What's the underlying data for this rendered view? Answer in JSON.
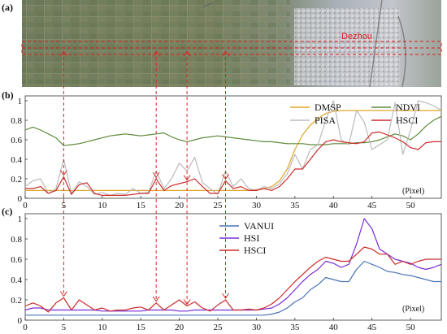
{
  "panel_a": {
    "label": "(a)",
    "place_label": "Dezhou"
  },
  "chart_data": [
    {
      "panel": "(b)",
      "type": "line",
      "xlabel": "(Pixel)",
      "ylabel": "",
      "xlim": [
        0,
        54
      ],
      "ylim": [
        0,
        1
      ],
      "xticks": [
        0,
        5,
        10,
        15,
        20,
        25,
        30,
        35,
        40,
        45,
        50
      ],
      "yticks": [
        0,
        0.2,
        0.4,
        0.6,
        0.8,
        1
      ],
      "grid": false,
      "legend_position": "top-right",
      "x": [
        0,
        1,
        2,
        3,
        4,
        5,
        6,
        7,
        8,
        9,
        10,
        11,
        12,
        13,
        14,
        15,
        16,
        17,
        18,
        19,
        20,
        21,
        22,
        23,
        24,
        25,
        26,
        27,
        28,
        29,
        30,
        31,
        32,
        33,
        34,
        35,
        36,
        37,
        38,
        39,
        40,
        41,
        42,
        43,
        44,
        45,
        46,
        47,
        48,
        49,
        50,
        51,
        52,
        53,
        54
      ],
      "series": [
        {
          "name": "DMSP",
          "color": "#e0a526",
          "values": [
            0.08,
            0.08,
            0.08,
            0.08,
            0.08,
            0.08,
            0.08,
            0.08,
            0.08,
            0.08,
            0.08,
            0.08,
            0.08,
            0.08,
            0.08,
            0.08,
            0.08,
            0.08,
            0.08,
            0.08,
            0.08,
            0.08,
            0.08,
            0.08,
            0.08,
            0.08,
            0.08,
            0.08,
            0.08,
            0.08,
            0.09,
            0.1,
            0.12,
            0.18,
            0.3,
            0.5,
            0.65,
            0.75,
            0.82,
            0.87,
            0.89,
            0.9,
            0.9,
            0.9,
            0.9,
            0.9,
            0.9,
            0.9,
            0.9,
            0.9,
            0.9,
            0.9,
            0.9,
            0.9,
            0.9
          ]
        },
        {
          "name": "NDVI",
          "color": "#5e8a3a",
          "values": [
            0.7,
            0.73,
            0.7,
            0.66,
            0.62,
            0.54,
            0.55,
            0.56,
            0.58,
            0.6,
            0.62,
            0.64,
            0.65,
            0.66,
            0.65,
            0.64,
            0.65,
            0.66,
            0.67,
            0.63,
            0.6,
            0.58,
            0.6,
            0.62,
            0.63,
            0.64,
            0.63,
            0.62,
            0.61,
            0.6,
            0.59,
            0.58,
            0.58,
            0.57,
            0.56,
            0.56,
            0.56,
            0.55,
            0.55,
            0.55,
            0.56,
            0.56,
            0.56,
            0.57,
            0.57,
            0.58,
            0.6,
            0.63,
            0.66,
            0.64,
            0.6,
            0.66,
            0.74,
            0.8,
            0.84
          ]
        },
        {
          "name": "PISA",
          "color": "#bbbbbb",
          "values": [
            0.12,
            0.18,
            0.2,
            0.05,
            0.1,
            0.4,
            0.05,
            0.17,
            0.12,
            0.04,
            0.06,
            0.03,
            0.05,
            0.04,
            0.1,
            0.05,
            0.06,
            0.28,
            0.1,
            0.2,
            0.36,
            0.28,
            0.42,
            0.16,
            0.1,
            0.04,
            0.28,
            0.12,
            0.2,
            0.1,
            0.08,
            0.12,
            0.1,
            0.15,
            0.25,
            0.45,
            0.3,
            0.5,
            0.55,
            0.8,
            1.0,
            0.6,
            0.55,
            0.9,
            0.78,
            0.5,
            0.55,
            0.6,
            0.98,
            0.45,
            0.7,
            1.0,
            0.98,
            0.95,
            0.9
          ]
        },
        {
          "name": "HSCI",
          "color": "#cc2b2b",
          "values": [
            0.1,
            0.1,
            0.12,
            0.05,
            0.08,
            0.22,
            0.04,
            0.14,
            0.16,
            0.05,
            0.03,
            0.03,
            0.03,
            0.03,
            0.04,
            0.05,
            0.05,
            0.2,
            0.08,
            0.13,
            0.15,
            0.17,
            0.2,
            0.12,
            0.05,
            0.05,
            0.18,
            0.1,
            0.12,
            0.08,
            0.08,
            0.1,
            0.08,
            0.12,
            0.2,
            0.3,
            0.3,
            0.4,
            0.5,
            0.58,
            0.6,
            0.58,
            0.57,
            0.56,
            0.58,
            0.67,
            0.68,
            0.65,
            0.62,
            0.58,
            0.52,
            0.5,
            0.57,
            0.58,
            0.58
          ]
        }
      ]
    },
    {
      "panel": "(c)",
      "type": "line",
      "xlabel": "(Pixel)",
      "ylabel": "",
      "xlim": [
        0,
        54
      ],
      "ylim": [
        0,
        1
      ],
      "xticks": [
        0,
        5,
        10,
        15,
        20,
        25,
        30,
        35,
        40,
        45,
        50
      ],
      "yticks": [
        0,
        0.2,
        0.4,
        0.6,
        0.8,
        1
      ],
      "grid": false,
      "legend_position": "top-center",
      "x": [
        0,
        1,
        2,
        3,
        4,
        5,
        6,
        7,
        8,
        9,
        10,
        11,
        12,
        13,
        14,
        15,
        16,
        17,
        18,
        19,
        20,
        21,
        22,
        23,
        24,
        25,
        26,
        27,
        28,
        29,
        30,
        31,
        32,
        33,
        34,
        35,
        36,
        37,
        38,
        39,
        40,
        41,
        42,
        43,
        44,
        45,
        46,
        47,
        48,
        49,
        50,
        51,
        52,
        53,
        54
      ],
      "series": [
        {
          "name": "VANUI",
          "color": "#4a74b5",
          "values": [
            0.05,
            0.05,
            0.05,
            0.05,
            0.05,
            0.05,
            0.05,
            0.05,
            0.05,
            0.05,
            0.05,
            0.05,
            0.05,
            0.05,
            0.05,
            0.05,
            0.05,
            0.05,
            0.05,
            0.05,
            0.05,
            0.05,
            0.05,
            0.05,
            0.05,
            0.05,
            0.05,
            0.05,
            0.05,
            0.05,
            0.05,
            0.05,
            0.06,
            0.08,
            0.12,
            0.18,
            0.22,
            0.3,
            0.35,
            0.42,
            0.4,
            0.38,
            0.38,
            0.5,
            0.58,
            0.55,
            0.52,
            0.48,
            0.47,
            0.45,
            0.44,
            0.42,
            0.4,
            0.38,
            0.38
          ]
        },
        {
          "name": "HSI",
          "color": "#7b2bd6",
          "values": [
            0.1,
            0.12,
            0.12,
            0.1,
            0.1,
            0.1,
            0.1,
            0.1,
            0.1,
            0.1,
            0.09,
            0.09,
            0.09,
            0.09,
            0.09,
            0.09,
            0.1,
            0.1,
            0.1,
            0.1,
            0.09,
            0.09,
            0.1,
            0.1,
            0.1,
            0.1,
            0.1,
            0.1,
            0.1,
            0.1,
            0.1,
            0.11,
            0.12,
            0.16,
            0.22,
            0.3,
            0.38,
            0.45,
            0.5,
            0.58,
            0.56,
            0.52,
            0.55,
            0.75,
            1.0,
            0.9,
            0.7,
            0.65,
            0.6,
            0.58,
            0.56,
            0.52,
            0.5,
            0.52,
            0.55
          ]
        },
        {
          "name": "HSCI",
          "color": "#cc2b2b",
          "values": [
            0.14,
            0.17,
            0.14,
            0.08,
            0.17,
            0.22,
            0.1,
            0.2,
            0.15,
            0.1,
            0.12,
            0.09,
            0.1,
            0.1,
            0.12,
            0.13,
            0.1,
            0.17,
            0.1,
            0.15,
            0.2,
            0.14,
            0.18,
            0.12,
            0.09,
            0.15,
            0.2,
            0.1,
            0.1,
            0.11,
            0.1,
            0.12,
            0.16,
            0.22,
            0.3,
            0.38,
            0.45,
            0.52,
            0.58,
            0.62,
            0.6,
            0.58,
            0.58,
            0.65,
            0.72,
            0.7,
            0.65,
            0.65,
            0.55,
            0.58,
            0.55,
            0.58,
            0.6,
            0.6,
            0.6
          ]
        }
      ]
    }
  ],
  "markers": {
    "x_positions": [
      5,
      17,
      21,
      26
    ],
    "color": "#d42a2a"
  }
}
